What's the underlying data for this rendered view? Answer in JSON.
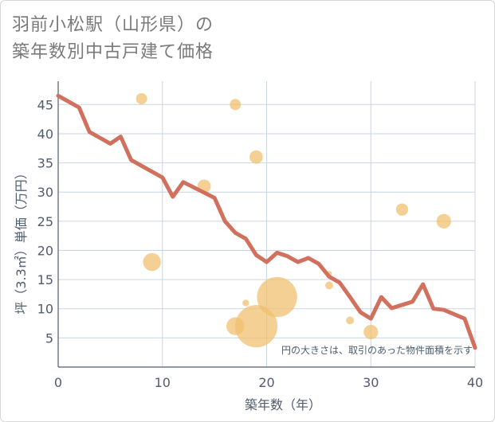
{
  "title": {
    "line1": "羽前小松駅（山形県）の",
    "line2": "築年数別中古戸建て価格"
  },
  "chart_data": {
    "type": "scatter",
    "title": "羽前小松駅（山形県）の築年数別中古戸建て価格",
    "xlabel": "築年数（年）",
    "ylabel": "坪（3.3㎡）単価（万円）",
    "xlim": [
      0,
      40
    ],
    "ylim": [
      0,
      49
    ],
    "xticks": [
      0,
      10,
      20,
      30,
      40
    ],
    "yticks": [
      5,
      10,
      15,
      20,
      25,
      30,
      35,
      40,
      45
    ],
    "grid": true,
    "note": "円の大きさは、取引のあった物件面積を示す",
    "colors": {
      "bubble": "#f0c070",
      "line": "#d2705e",
      "grid": "#c8d6e2",
      "axis": "#4f5d6e"
    },
    "bubbles": [
      {
        "x": 8,
        "y": 46,
        "size": 1
      },
      {
        "x": 17,
        "y": 45,
        "size": 1
      },
      {
        "x": 19,
        "y": 36,
        "size": 1.2
      },
      {
        "x": 14,
        "y": 31,
        "size": 1.2
      },
      {
        "x": 9,
        "y": 18,
        "size": 1.6
      },
      {
        "x": 33,
        "y": 27,
        "size": 1.1
      },
      {
        "x": 37,
        "y": 25,
        "size": 1.3
      },
      {
        "x": 21,
        "y": 12,
        "size": 3.6
      },
      {
        "x": 19,
        "y": 7,
        "size": 3.8
      },
      {
        "x": 17,
        "y": 7,
        "size": 1.6
      },
      {
        "x": 18,
        "y": 11,
        "size": 0.6
      },
      {
        "x": 26,
        "y": 16,
        "size": 0.5
      },
      {
        "x": 26,
        "y": 14,
        "size": 0.7
      },
      {
        "x": 28,
        "y": 8,
        "size": 0.7
      },
      {
        "x": 30,
        "y": 6,
        "size": 1.3
      }
    ],
    "trend": {
      "x": [
        0,
        2,
        3,
        5,
        6,
        7,
        10,
        11,
        12,
        15,
        16,
        17,
        18,
        19,
        20,
        21,
        22,
        23,
        24,
        25,
        26,
        27,
        28,
        29,
        30,
        31,
        32,
        34,
        35,
        36,
        37,
        39,
        40
      ],
      "y": [
        46.5,
        44.5,
        40.3,
        38.3,
        39.5,
        35.5,
        32.5,
        29.2,
        31.7,
        29,
        25,
        23,
        22,
        19.2,
        18,
        19.6,
        19,
        18,
        18.7,
        17.7,
        15.5,
        14.5,
        12,
        9.4,
        8.3,
        12,
        10.1,
        11.2,
        14.2,
        10,
        9.8,
        8.3,
        3.3
      ]
    }
  }
}
